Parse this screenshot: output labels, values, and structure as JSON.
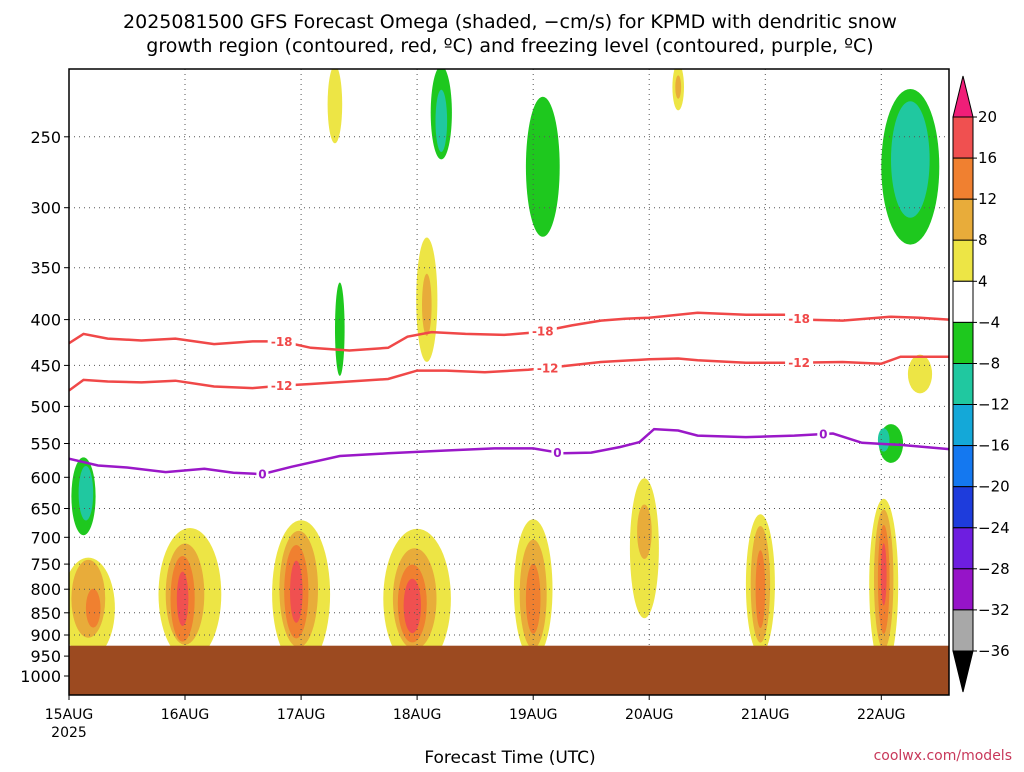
{
  "colors": {
    "temp_contour": "#f04848",
    "freezing_contour": "#9a18c8",
    "ground": "#9c4a20",
    "credit": "#c8385a"
  },
  "chart_data": {
    "type": "heatmap",
    "title_lines": [
      "2025081500 GFS Forecast Omega (shaded, −cm/s) for KPMD with dendritic snow",
      "growth region (contoured, red, ºC) and freezing level (contoured, purple, ºC)"
    ],
    "xlabel": "Forecast Time (UTC)",
    "ylabel": "",
    "y_scale": "pressure (log, inverted)",
    "ylim_hpa": [
      1050,
      210
    ],
    "y_ticks": [
      250,
      300,
      350,
      400,
      450,
      500,
      550,
      600,
      650,
      700,
      750,
      800,
      850,
      900,
      950,
      1000
    ],
    "x_range_hours": [
      0,
      182
    ],
    "x_ticks": [
      {
        "label": "15AUG",
        "sub": "2025",
        "hour": 0
      },
      {
        "label": "16AUG",
        "hour": 24
      },
      {
        "label": "17AUG",
        "hour": 48
      },
      {
        "label": "18AUG",
        "hour": 72
      },
      {
        "label": "19AUG",
        "hour": 96
      },
      {
        "label": "20AUG",
        "hour": 120
      },
      {
        "label": "21AUG",
        "hour": 144
      },
      {
        "label": "22AUG",
        "hour": 168
      }
    ],
    "grid": "dotted",
    "surface_pressure_hpa": 925,
    "colorbar": {
      "labels": [
        "20",
        "16",
        "12",
        "8",
        "4",
        "−4",
        "−8",
        "−12",
        "−16",
        "−20",
        "−24",
        "−28",
        "−32",
        "−36"
      ],
      "colors": [
        "#f01e78",
        "#f05050",
        "#f08030",
        "#e8ac3a",
        "#ede545",
        "#ffffff",
        "#1ec81e",
        "#20c8a0",
        "#14a8d8",
        "#1478f0",
        "#1e3cdc",
        "#6e1ee0",
        "#9614c8",
        "#a8a8a8",
        "#000000"
      ]
    },
    "contours": [
      {
        "label": "-18",
        "color": "temp",
        "label_hours": [
          44,
          98,
          151
        ],
        "points": [
          [
            0,
            425
          ],
          [
            3,
            415
          ],
          [
            8,
            420
          ],
          [
            15,
            422
          ],
          [
            22,
            420
          ],
          [
            30,
            426
          ],
          [
            38,
            423
          ],
          [
            44,
            423
          ],
          [
            50,
            430
          ],
          [
            58,
            433
          ],
          [
            66,
            430
          ],
          [
            70,
            418
          ],
          [
            75,
            413
          ],
          [
            82,
            415
          ],
          [
            90,
            416
          ],
          [
            97,
            413
          ],
          [
            104,
            406
          ],
          [
            110,
            401
          ],
          [
            115,
            399
          ],
          [
            120,
            398
          ],
          [
            130,
            393
          ],
          [
            140,
            395
          ],
          [
            148,
            395
          ],
          [
            152,
            400
          ],
          [
            160,
            401
          ],
          [
            170,
            397
          ],
          [
            176,
            398
          ],
          [
            182,
            400
          ]
        ]
      },
      {
        "label": "-12",
        "color": "temp",
        "label_hours": [
          44,
          99,
          151
        ],
        "points": [
          [
            0,
            480
          ],
          [
            3,
            467
          ],
          [
            8,
            469
          ],
          [
            15,
            470
          ],
          [
            22,
            468
          ],
          [
            30,
            475
          ],
          [
            38,
            477
          ],
          [
            44,
            474
          ],
          [
            50,
            472
          ],
          [
            58,
            469
          ],
          [
            66,
            466
          ],
          [
            72,
            456
          ],
          [
            78,
            456
          ],
          [
            86,
            458
          ],
          [
            95,
            455
          ],
          [
            102,
            451
          ],
          [
            110,
            446
          ],
          [
            120,
            443
          ],
          [
            126,
            442
          ],
          [
            130,
            444
          ],
          [
            140,
            447
          ],
          [
            150,
            447
          ],
          [
            160,
            446
          ],
          [
            168,
            448
          ],
          [
            172,
            440
          ],
          [
            176,
            440
          ],
          [
            182,
            440
          ]
        ]
      },
      {
        "label": "0",
        "color": "freezing",
        "label_hours": [
          40,
          101,
          156
        ],
        "points": [
          [
            0,
            572
          ],
          [
            6,
            582
          ],
          [
            12,
            585
          ],
          [
            20,
            592
          ],
          [
            28,
            587
          ],
          [
            34,
            593
          ],
          [
            40,
            595
          ],
          [
            46,
            584
          ],
          [
            56,
            568
          ],
          [
            66,
            564
          ],
          [
            78,
            560
          ],
          [
            88,
            557
          ],
          [
            96,
            557
          ],
          [
            102,
            564
          ],
          [
            108,
            563
          ],
          [
            114,
            555
          ],
          [
            118,
            548
          ],
          [
            121,
            530
          ],
          [
            126,
            532
          ],
          [
            130,
            539
          ],
          [
            140,
            541
          ],
          [
            150,
            539
          ],
          [
            158,
            536
          ],
          [
            164,
            549
          ],
          [
            172,
            552
          ],
          [
            182,
            558
          ]
        ]
      }
    ],
    "omega_regions": [
      {
        "level": 4,
        "hour": 4,
        "p": 840,
        "rx_h": 5.5,
        "dp_log": 0.13
      },
      {
        "level": 8,
        "hour": 4,
        "p": 820,
        "rx_h": 3.5,
        "dp_log": 0.1
      },
      {
        "level": 12,
        "hour": 5,
        "p": 840,
        "rx_h": 1.5,
        "dp_log": 0.05
      },
      {
        "level": 4,
        "hour": 25,
        "p": 810,
        "rx_h": 6.5,
        "dp_log": 0.17
      },
      {
        "level": 8,
        "hour": 24,
        "p": 810,
        "rx_h": 4,
        "dp_log": 0.13
      },
      {
        "level": 12,
        "hour": 23.5,
        "p": 820,
        "rx_h": 2.5,
        "dp_log": 0.11
      },
      {
        "level": 16,
        "hour": 23.5,
        "p": 820,
        "rx_h": 1.2,
        "dp_log": 0.07
      },
      {
        "level": 4,
        "hour": 48,
        "p": 810,
        "rx_h": 6,
        "dp_log": 0.19
      },
      {
        "level": 8,
        "hour": 47.5,
        "p": 800,
        "rx_h": 4,
        "dp_log": 0.15
      },
      {
        "level": 12,
        "hour": 47,
        "p": 805,
        "rx_h": 2.5,
        "dp_log": 0.12
      },
      {
        "level": 16,
        "hour": 47,
        "p": 805,
        "rx_h": 1.3,
        "dp_log": 0.08
      },
      {
        "level": 4,
        "hour": 72,
        "p": 820,
        "rx_h": 7,
        "dp_log": 0.18
      },
      {
        "level": 8,
        "hour": 71.5,
        "p": 820,
        "rx_h": 4.5,
        "dp_log": 0.13
      },
      {
        "level": 12,
        "hour": 71,
        "p": 830,
        "rx_h": 3,
        "dp_log": 0.1
      },
      {
        "level": 16,
        "hour": 71,
        "p": 835,
        "rx_h": 1.8,
        "dp_log": 0.07
      },
      {
        "level": 4,
        "hour": 96,
        "p": 800,
        "rx_h": 4,
        "dp_log": 0.18
      },
      {
        "level": 8,
        "hour": 96,
        "p": 810,
        "rx_h": 2.8,
        "dp_log": 0.14
      },
      {
        "level": 12,
        "hour": 96,
        "p": 820,
        "rx_h": 1.5,
        "dp_log": 0.09
      },
      {
        "level": 4,
        "hour": 119,
        "p": 720,
        "rx_h": 3,
        "dp_log": 0.18
      },
      {
        "level": 8,
        "hour": 119,
        "p": 690,
        "rx_h": 1.5,
        "dp_log": 0.07
      },
      {
        "level": 4,
        "hour": 143,
        "p": 790,
        "rx_h": 3,
        "dp_log": 0.18
      },
      {
        "level": 8,
        "hour": 143,
        "p": 790,
        "rx_h": 2,
        "dp_log": 0.15
      },
      {
        "level": 12,
        "hour": 143,
        "p": 800,
        "rx_h": 1,
        "dp_log": 0.1
      },
      {
        "level": 4,
        "hour": 168.5,
        "p": 790,
        "rx_h": 3,
        "dp_log": 0.22
      },
      {
        "level": 8,
        "hour": 168.5,
        "p": 780,
        "rx_h": 2,
        "dp_log": 0.18
      },
      {
        "level": 12,
        "hour": 168.5,
        "p": 780,
        "rx_h": 1.2,
        "dp_log": 0.14
      },
      {
        "level": 16,
        "hour": 168.5,
        "p": 770,
        "rx_h": 0.6,
        "dp_log": 0.08
      },
      {
        "level": 4,
        "hour": 55,
        "p": 230,
        "rx_h": 1.5,
        "dp_log": 0.1
      },
      {
        "level": 4,
        "hour": 74,
        "p": 380,
        "rx_h": 2.2,
        "dp_log": 0.16
      },
      {
        "level": 8,
        "hour": 74,
        "p": 385,
        "rx_h": 1,
        "dp_log": 0.08
      },
      {
        "level": 4,
        "hour": 126,
        "p": 220,
        "rx_h": 1.2,
        "dp_log": 0.06
      },
      {
        "level": 8,
        "hour": 126,
        "p": 220,
        "rx_h": 0.6,
        "dp_log": 0.03
      },
      {
        "level": 4,
        "hour": 176,
        "p": 460,
        "rx_h": 2.5,
        "dp_log": 0.05
      },
      {
        "level": -4,
        "hour": 77,
        "p": 235,
        "rx_h": 2.2,
        "dp_log": 0.12
      },
      {
        "level": -8,
        "hour": 77,
        "p": 240,
        "rx_h": 1.2,
        "dp_log": 0.08
      },
      {
        "level": -4,
        "hour": 98,
        "p": 270,
        "rx_h": 3.5,
        "dp_log": 0.18
      },
      {
        "level": -4,
        "hour": 174,
        "p": 270,
        "rx_h": 6,
        "dp_log": 0.2
      },
      {
        "level": -8,
        "hour": 174,
        "p": 265,
        "rx_h": 4,
        "dp_log": 0.15
      },
      {
        "level": -4,
        "hour": 56,
        "p": 410,
        "rx_h": 1,
        "dp_log": 0.12
      },
      {
        "level": -4,
        "hour": 3,
        "p": 630,
        "rx_h": 2.5,
        "dp_log": 0.1
      },
      {
        "level": -8,
        "hour": 3.5,
        "p": 625,
        "rx_h": 1.5,
        "dp_log": 0.07
      },
      {
        "level": -4,
        "hour": 170,
        "p": 550,
        "rx_h": 2.5,
        "dp_log": 0.05
      },
      {
        "level": -8,
        "hour": 168.5,
        "p": 545,
        "rx_h": 1.2,
        "dp_log": 0.03
      }
    ]
  },
  "credit": "coolwx.com/models"
}
